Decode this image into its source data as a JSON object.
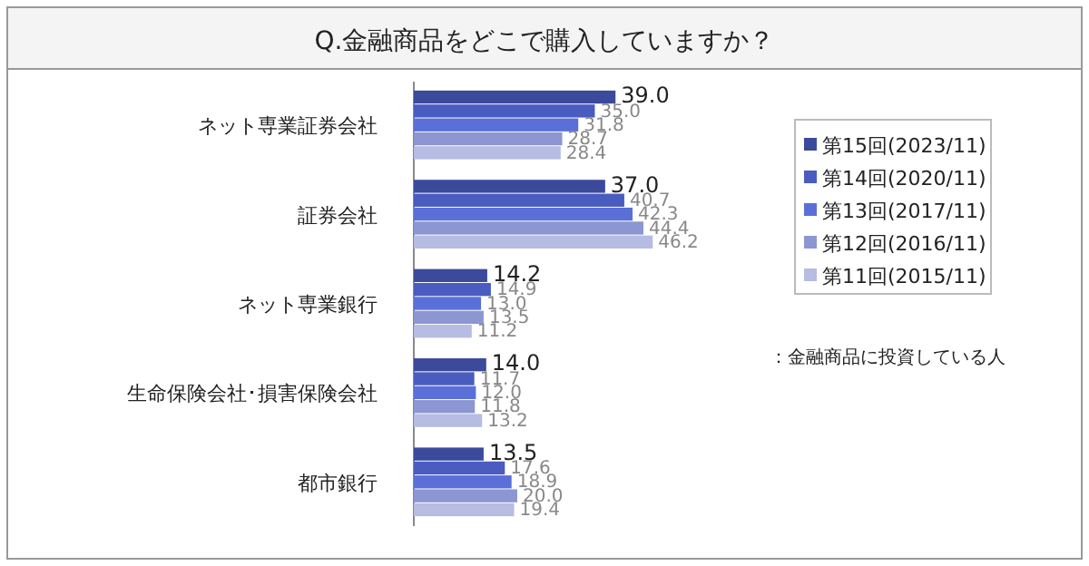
{
  "chart_data": {
    "type": "bar",
    "orientation": "horizontal",
    "title": "Q.金融商品をどこで購入していますか？",
    "categories": [
      "ネット専業証券会社",
      "証券会社",
      "ネット専業銀行",
      "生命保険会社･損害保険会社",
      "都市銀行"
    ],
    "series": [
      {
        "name": "第15回(2023/11)",
        "color": "#3b4a9a",
        "values": [
          39.0,
          37.0,
          14.2,
          14.0,
          13.5
        ],
        "value_labels": [
          "39.0",
          "37.0",
          "14.2",
          "14.0",
          "13.5"
        ]
      },
      {
        "name": "第14回(2020/11)",
        "color": "#4a5cc0",
        "values": [
          35.0,
          40.7,
          14.9,
          11.7,
          17.6
        ],
        "value_labels": [
          "35.0",
          "40.7",
          "14.9",
          "11.7",
          "17.6"
        ]
      },
      {
        "name": "第13回(2017/11)",
        "color": "#5a70d8",
        "values": [
          31.8,
          42.3,
          13.0,
          12.0,
          18.9
        ],
        "value_labels": [
          "31.8",
          "42.3",
          "13.0",
          "12.0",
          "18.9"
        ]
      },
      {
        "name": "第12回(2016/11)",
        "color": "#8c96d2",
        "values": [
          28.7,
          44.4,
          13.5,
          11.8,
          20.0
        ],
        "value_labels": [
          "28.7",
          "44.4",
          "13.5",
          "11.8",
          "20.0"
        ]
      },
      {
        "name": "第11回(2015/11)",
        "color": "#b6bce2",
        "values": [
          28.4,
          46.2,
          11.2,
          13.2,
          19.4
        ],
        "value_labels": [
          "28.4",
          "46.2",
          "11.2",
          "13.2",
          "19.4"
        ]
      }
    ],
    "tick_labels": false,
    "legend": "right",
    "annotations": [
      "：金融商品に投資している人"
    ]
  }
}
